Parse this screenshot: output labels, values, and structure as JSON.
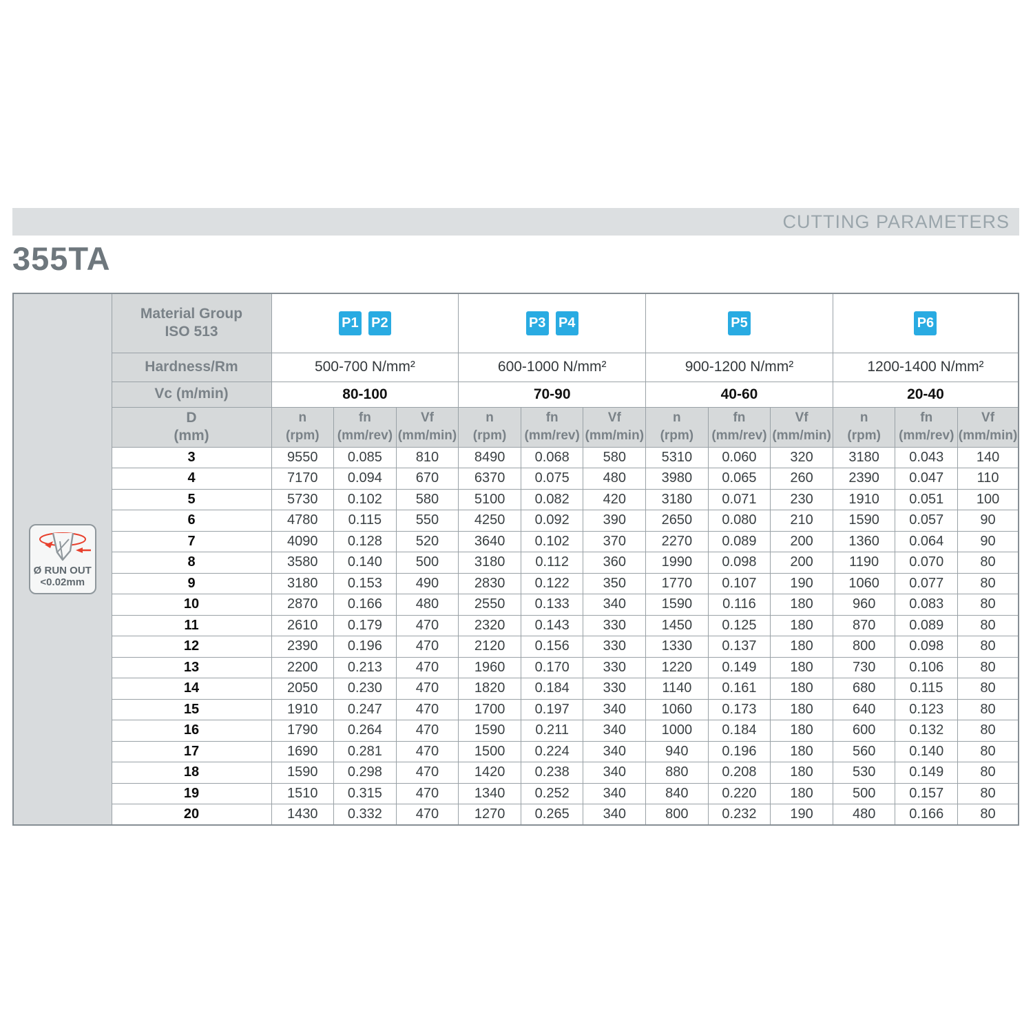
{
  "header": {
    "bar_label": "CUTTING PARAMETERS"
  },
  "page_title": "355TA",
  "runout_badge": {
    "line1": "Ø RUN OUT",
    "line2": "<0.02mm"
  },
  "colors": {
    "badge_blue": "#29abe2",
    "accent_red": "#e8402d",
    "header_gray": "#d6d9da",
    "bar_gray": "#dcdfe1"
  },
  "table": {
    "labels": {
      "material_group": "Material Group\nISO 513",
      "hardness": "Hardness/Rm",
      "vc": "Vc (m/min)",
      "d": "D\n(mm)"
    },
    "col_headers": {
      "n": "n\n(rpm)",
      "fn": "fn\n(mm/rev)",
      "vf": "Vf\n(mm/min)"
    },
    "groups": [
      {
        "badges": [
          "P1",
          "P2"
        ],
        "hardness": "500-700 N/mm²",
        "vc": "80-100"
      },
      {
        "badges": [
          "P3",
          "P4"
        ],
        "hardness": "600-1000 N/mm²",
        "vc": "70-90"
      },
      {
        "badges": [
          "P5"
        ],
        "hardness": "900-1200 N/mm²",
        "vc": "40-60"
      },
      {
        "badges": [
          "P6"
        ],
        "hardness": "1200-1400 N/mm²",
        "vc": "20-40"
      }
    ],
    "rows": [
      {
        "d": "3",
        "values": [
          "9550",
          "0.085",
          "810",
          "8490",
          "0.068",
          "580",
          "5310",
          "0.060",
          "320",
          "3180",
          "0.043",
          "140"
        ]
      },
      {
        "d": "4",
        "values": [
          "7170",
          "0.094",
          "670",
          "6370",
          "0.075",
          "480",
          "3980",
          "0.065",
          "260",
          "2390",
          "0.047",
          "110"
        ]
      },
      {
        "d": "5",
        "values": [
          "5730",
          "0.102",
          "580",
          "5100",
          "0.082",
          "420",
          "3180",
          "0.071",
          "230",
          "1910",
          "0.051",
          "100"
        ]
      },
      {
        "d": "6",
        "values": [
          "4780",
          "0.115",
          "550",
          "4250",
          "0.092",
          "390",
          "2650",
          "0.080",
          "210",
          "1590",
          "0.057",
          "90"
        ]
      },
      {
        "d": "7",
        "values": [
          "4090",
          "0.128",
          "520",
          "3640",
          "0.102",
          "370",
          "2270",
          "0.089",
          "200",
          "1360",
          "0.064",
          "90"
        ]
      },
      {
        "d": "8",
        "values": [
          "3580",
          "0.140",
          "500",
          "3180",
          "0.112",
          "360",
          "1990",
          "0.098",
          "200",
          "1190",
          "0.070",
          "80"
        ]
      },
      {
        "d": "9",
        "values": [
          "3180",
          "0.153",
          "490",
          "2830",
          "0.122",
          "350",
          "1770",
          "0.107",
          "190",
          "1060",
          "0.077",
          "80"
        ]
      },
      {
        "d": "10",
        "values": [
          "2870",
          "0.166",
          "480",
          "2550",
          "0.133",
          "340",
          "1590",
          "0.116",
          "180",
          "960",
          "0.083",
          "80"
        ]
      },
      {
        "d": "11",
        "values": [
          "2610",
          "0.179",
          "470",
          "2320",
          "0.143",
          "330",
          "1450",
          "0.125",
          "180",
          "870",
          "0.089",
          "80"
        ]
      },
      {
        "d": "12",
        "values": [
          "2390",
          "0.196",
          "470",
          "2120",
          "0.156",
          "330",
          "1330",
          "0.137",
          "180",
          "800",
          "0.098",
          "80"
        ]
      },
      {
        "d": "13",
        "values": [
          "2200",
          "0.213",
          "470",
          "1960",
          "0.170",
          "330",
          "1220",
          "0.149",
          "180",
          "730",
          "0.106",
          "80"
        ]
      },
      {
        "d": "14",
        "values": [
          "2050",
          "0.230",
          "470",
          "1820",
          "0.184",
          "330",
          "1140",
          "0.161",
          "180",
          "680",
          "0.115",
          "80"
        ]
      },
      {
        "d": "15",
        "values": [
          "1910",
          "0.247",
          "470",
          "1700",
          "0.197",
          "340",
          "1060",
          "0.173",
          "180",
          "640",
          "0.123",
          "80"
        ]
      },
      {
        "d": "16",
        "values": [
          "1790",
          "0.264",
          "470",
          "1590",
          "0.211",
          "340",
          "1000",
          "0.184",
          "180",
          "600",
          "0.132",
          "80"
        ]
      },
      {
        "d": "17",
        "values": [
          "1690",
          "0.281",
          "470",
          "1500",
          "0.224",
          "340",
          "940",
          "0.196",
          "180",
          "560",
          "0.140",
          "80"
        ]
      },
      {
        "d": "18",
        "values": [
          "1590",
          "0.298",
          "470",
          "1420",
          "0.238",
          "340",
          "880",
          "0.208",
          "180",
          "530",
          "0.149",
          "80"
        ]
      },
      {
        "d": "19",
        "values": [
          "1510",
          "0.315",
          "470",
          "1340",
          "0.252",
          "340",
          "840",
          "0.220",
          "180",
          "500",
          "0.157",
          "80"
        ]
      },
      {
        "d": "20",
        "values": [
          "1430",
          "0.332",
          "470",
          "1270",
          "0.265",
          "340",
          "800",
          "0.232",
          "190",
          "480",
          "0.166",
          "80"
        ]
      }
    ]
  }
}
